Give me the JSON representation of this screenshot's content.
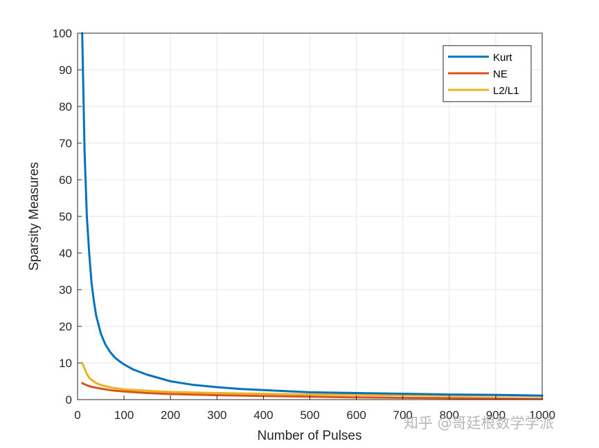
{
  "chart_data": {
    "type": "line",
    "title": "",
    "xlabel": "Number of Pulses",
    "ylabel": "Sparsity Measures",
    "xlim": [
      0,
      1000
    ],
    "ylim": [
      0,
      100
    ],
    "xticks": [
      0,
      100,
      200,
      300,
      400,
      500,
      600,
      700,
      800,
      900,
      1000
    ],
    "yticks": [
      0,
      10,
      20,
      30,
      40,
      50,
      60,
      70,
      80,
      90,
      100
    ],
    "xtick_labels": [
      "0",
      "100",
      "200",
      "300",
      "400",
      "500",
      "600",
      "700",
      "800",
      "900",
      "1000"
    ],
    "ytick_labels": [
      "0",
      "10",
      "20",
      "30",
      "40",
      "50",
      "60",
      "70",
      "80",
      "90",
      "100"
    ],
    "grid": true,
    "legend_position": "top-right",
    "series": [
      {
        "name": "Kurt",
        "color": "#0072BD",
        "x": [
          10,
          15,
          20,
          25,
          30,
          35,
          40,
          50,
          60,
          70,
          80,
          90,
          100,
          120,
          150,
          200,
          250,
          300,
          350,
          400,
          500,
          600,
          700,
          800,
          900,
          1000
        ],
        "y": [
          100,
          68,
          50,
          40,
          32,
          27,
          23,
          18,
          15,
          13,
          11.5,
          10.5,
          9.6,
          8.2,
          6.8,
          5.0,
          4.0,
          3.4,
          2.9,
          2.6,
          2.0,
          1.8,
          1.6,
          1.4,
          1.3,
          1.1
        ]
      },
      {
        "name": "NE",
        "color": "#D95319",
        "x": [
          10,
          20,
          30,
          50,
          75,
          100,
          150,
          200,
          300,
          400,
          500,
          600,
          700,
          800,
          900,
          1000
        ],
        "y": [
          4.5,
          3.9,
          3.5,
          3.0,
          2.5,
          2.2,
          1.8,
          1.5,
          1.2,
          1.0,
          0.8,
          0.6,
          0.5,
          0.4,
          0.3,
          0.2
        ]
      },
      {
        "name": "L2/L1",
        "color": "#EDB120",
        "x": [
          10,
          15,
          20,
          25,
          30,
          40,
          50,
          75,
          100,
          150,
          200,
          300,
          400,
          500,
          600,
          700,
          800,
          900,
          1000
        ],
        "y": [
          10,
          8.5,
          7.0,
          6.0,
          5.4,
          4.5,
          4.0,
          3.2,
          2.8,
          2.4,
          2.1,
          1.8,
          1.6,
          1.4,
          1.3,
          1.2,
          1.1,
          1.05,
          1.0
        ]
      }
    ]
  },
  "watermark": "知乎 @哥廷根数学学派"
}
